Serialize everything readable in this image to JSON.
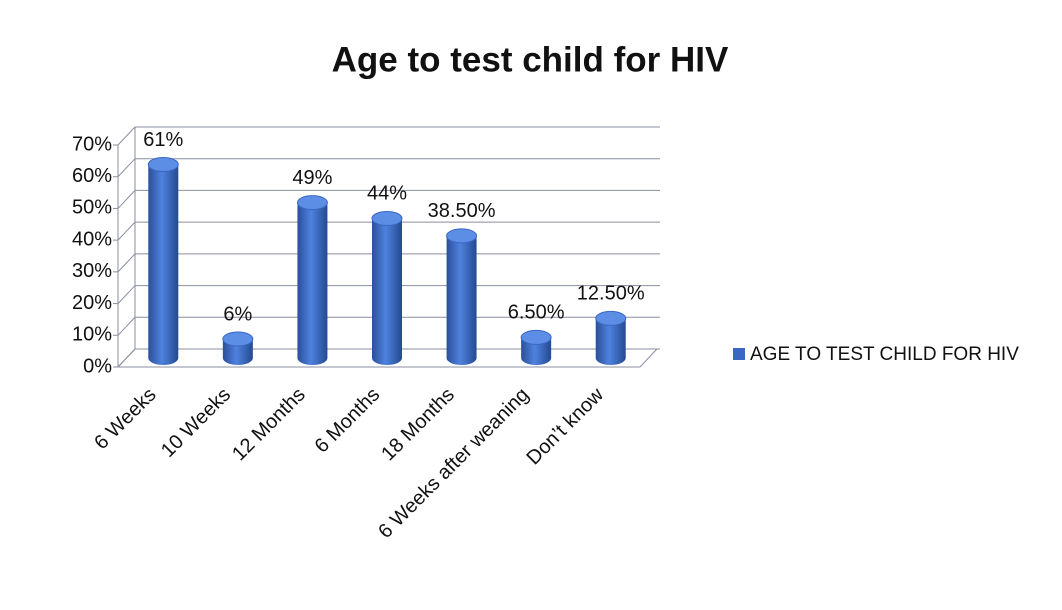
{
  "chart_data": {
    "type": "bar",
    "title": "Age to test child for HIV",
    "categories": [
      "6 Weeks",
      "10 Weeks",
      "12 Months",
      "6 Months",
      "18 Months",
      "6 Weeks after weaning",
      "Don’t know"
    ],
    "series": [
      {
        "name": "AGE TO TEST CHILD FOR HIV",
        "color": "#3a67c4",
        "values": [
          61,
          6,
          49,
          44,
          38.5,
          6.5,
          12.5
        ],
        "value_labels": [
          "61%",
          "6%",
          "49%",
          "44%",
          "38.50%",
          "6.50%",
          "12.50%"
        ]
      }
    ],
    "ylim": [
      0,
      70
    ],
    "yticks": [
      {
        "value": 0,
        "label": "0%"
      },
      {
        "value": 10,
        "label": "10%"
      },
      {
        "value": 20,
        "label": "20%"
      },
      {
        "value": 30,
        "label": "30%"
      },
      {
        "value": 40,
        "label": "40%"
      },
      {
        "value": 50,
        "label": "50%"
      },
      {
        "value": 60,
        "label": "60%"
      },
      {
        "value": 70,
        "label": "70%"
      }
    ],
    "grid": true,
    "legend": "right"
  }
}
